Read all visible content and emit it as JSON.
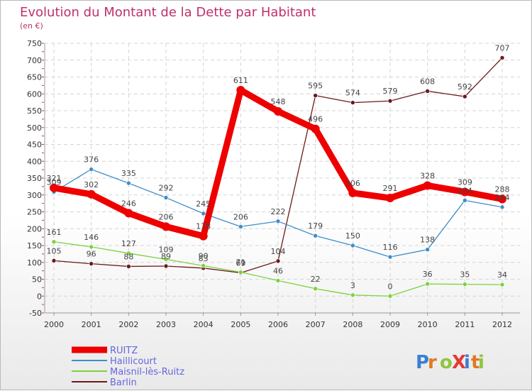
{
  "chart_data": {
    "type": "line",
    "title": "Evolution du Montant de la Dette par Habitant",
    "subtitle": "(en €)",
    "categories": [
      "2000",
      "2001",
      "2002",
      "2003",
      "2004",
      "2005",
      "2006",
      "2007",
      "2008",
      "2009",
      "2010",
      "2011",
      "2012"
    ],
    "ylim": [
      -50,
      750
    ],
    "yticks": [
      -50,
      0,
      50,
      100,
      150,
      200,
      250,
      300,
      350,
      400,
      450,
      500,
      550,
      600,
      650,
      700,
      750
    ],
    "grid": true,
    "legend_position": "bottom-left",
    "series": [
      {
        "name": "RUITZ",
        "color": "#ee0000",
        "values": [
          321,
          302,
          246,
          206,
          178,
          611,
          548,
          496,
          306,
          291,
          328,
          309,
          288
        ]
      },
      {
        "name": "Haillicourt",
        "color": "#3d8dc9",
        "values": [
          309,
          376,
          335,
          292,
          245,
          206,
          222,
          179,
          150,
          116,
          138,
          284,
          264
        ]
      },
      {
        "name": "Maisnil-lès-Ruitz",
        "color": "#7cd23c",
        "values": [
          161,
          146,
          127,
          109,
          90,
          71,
          46,
          22,
          3,
          0,
          36,
          35,
          34
        ]
      },
      {
        "name": "Barlin",
        "color": "#6b1a1a",
        "values": [
          105,
          96,
          88,
          89,
          83,
          69,
          104,
          595,
          574,
          579,
          608,
          592,
          707
        ]
      }
    ]
  },
  "logo": {
    "text": "ProXiti",
    "colors": [
      "#3a7fd5",
      "#e07a1f",
      "#8ec63f",
      "#e53935"
    ]
  }
}
